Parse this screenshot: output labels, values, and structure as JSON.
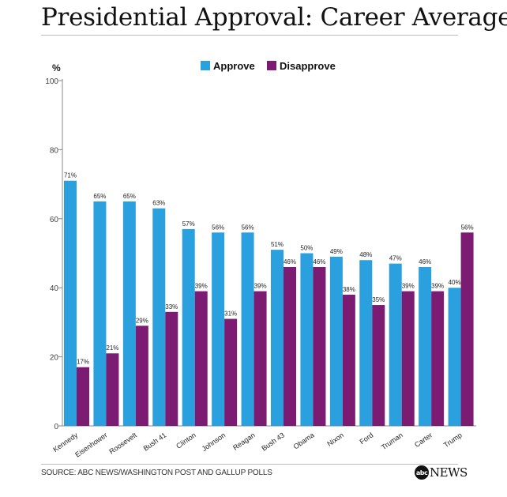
{
  "header": {
    "title": "Presidential Approval: Career Averages"
  },
  "footer": {
    "source": "SOURCE: ABC NEWS/WASHINGTON POST AND GALLUP POLLS"
  },
  "logo": {
    "mark": "abc",
    "word": "NEWS",
    "icon": "abc-news-logo"
  },
  "colors": {
    "approve": "#2aa0de",
    "disapprove": "#7b1c72"
  },
  "chart_data": {
    "type": "bar",
    "title": "Presidential Approval: Career Averages",
    "ylabel": "%",
    "xlabel": "",
    "ylim": [
      0,
      100
    ],
    "yticks": [
      0,
      20,
      40,
      60,
      80,
      100
    ],
    "grid": false,
    "legend_position": "top-center",
    "categories": [
      "Kennedy",
      "Eisenhower",
      "Roosevelt",
      "Bush 41",
      "Clinton",
      "Johnson",
      "Reagan",
      "Bush 43",
      "Obama",
      "Nixon",
      "Ford",
      "Truman",
      "Carter",
      "Trump"
    ],
    "series": [
      {
        "name": "Approve",
        "values": [
          71,
          65,
          65,
          63,
          57,
          56,
          56,
          51,
          50,
          49,
          48,
          47,
          46,
          40
        ],
        "labels": [
          "71%",
          "65%",
          "65%",
          "63%",
          "57%",
          "56%",
          "56%",
          "51%",
          "50%",
          "49%",
          "48%",
          "47%",
          "46%",
          "40%"
        ]
      },
      {
        "name": "Disapprove",
        "values": [
          17,
          21,
          29,
          33,
          39,
          31,
          39,
          46,
          46,
          38,
          35,
          39,
          39,
          56
        ],
        "labels": [
          "17%",
          "21%",
          "29%",
          "33%",
          "39%",
          "31%",
          "39%",
          "46%",
          "46%",
          "38%",
          "35%",
          "39%",
          "39%",
          "56%"
        ]
      }
    ]
  }
}
